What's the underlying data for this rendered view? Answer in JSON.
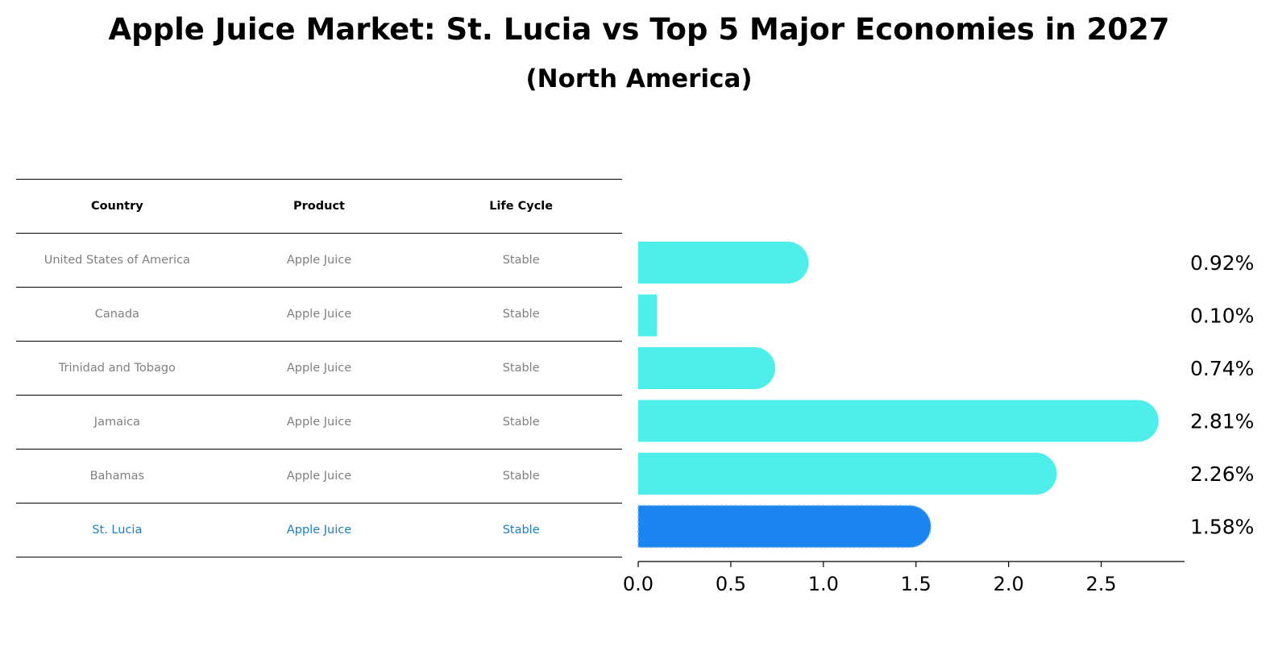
{
  "title": "Apple Juice Market: St. Lucia vs Top 5 Major Economies in 2027",
  "subtitle": "(North America)",
  "table": {
    "headers": [
      "Country",
      "Product",
      "Life Cycle"
    ],
    "rows": [
      [
        "United States of America",
        "Apple Juice",
        "Stable"
      ],
      [
        "Canada",
        "Apple Juice",
        "Stable"
      ],
      [
        "Trinidad and Tobago",
        "Apple Juice",
        "Stable"
      ],
      [
        "Jamaica",
        "Apple Juice",
        "Stable"
      ],
      [
        "Bahamas",
        "Apple Juice",
        "Stable"
      ],
      [
        "St. Lucia",
        "Apple Juice",
        "Stable"
      ]
    ],
    "highlight_row": 5,
    "highlight_color": "#1a7fc8"
  },
  "chart_data": {
    "type": "bar",
    "orientation": "horizontal",
    "categories": [
      "United States of America",
      "Canada",
      "Trinidad and Tobago",
      "Jamaica",
      "Bahamas",
      "St. Lucia"
    ],
    "values": [
      0.92,
      0.1,
      0.74,
      2.81,
      2.26,
      1.58
    ],
    "value_labels": [
      "0.92%",
      "0.10%",
      "0.74%",
      "2.81%",
      "2.26%",
      "1.58%"
    ],
    "xlim": [
      0,
      2.95
    ],
    "xticks": [
      0.0,
      0.5,
      1.0,
      1.5,
      2.0,
      2.5
    ],
    "xtick_labels": [
      "0.0",
      "0.5",
      "1.0",
      "1.5",
      "2.0",
      "2.5"
    ],
    "bar_color": "#4eeeea",
    "highlight_color": "#1a85f0",
    "highlight_index": 5,
    "grid": false
  }
}
